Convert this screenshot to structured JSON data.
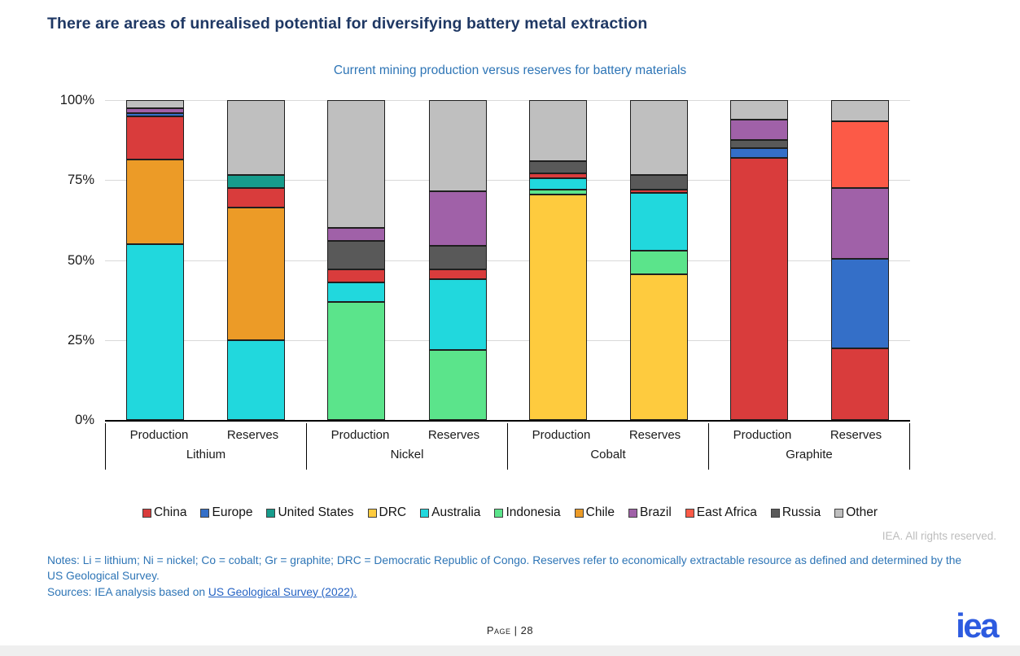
{
  "header": {
    "title": "There are areas of unrealised potential for diversifying battery metal extraction"
  },
  "chart_data": {
    "type": "bar",
    "stacked": true,
    "title": "Current mining production versus reserves for battery materials",
    "unit": "percent share",
    "ylim": [
      0,
      100
    ],
    "yticks": [
      0,
      25,
      50,
      75,
      100
    ],
    "ytick_labels": [
      "0%",
      "25%",
      "50%",
      "75%",
      "100%"
    ],
    "grid": true,
    "legend_position": "bottom",
    "legend": [
      "China",
      "Europe",
      "United States",
      "DRC",
      "Australia",
      "Indonesia",
      "Chile",
      "Brazil",
      "East Africa",
      "Russia",
      "Other"
    ],
    "series_colors": {
      "China": "#D93C3C",
      "Europe": "#346FC8",
      "United States": "#169C8C",
      "DRC": "#FECB3E",
      "Australia": "#21D8DD",
      "Indonesia": "#5BE48B",
      "Chile": "#EC9B27",
      "Brazil": "#A061A8",
      "East Africa": "#FC5A47",
      "Russia": "#595959",
      "Other": "#BFBFBF"
    },
    "groups": [
      {
        "label": "Lithium",
        "bars": [
          {
            "label": "Production",
            "segments": [
              {
                "name": "Australia",
                "value": 55
              },
              {
                "name": "Chile",
                "value": 26.5
              },
              {
                "name": "China",
                "value": 13.5
              },
              {
                "name": "Europe",
                "value": 1
              },
              {
                "name": "Brazil",
                "value": 1.5
              },
              {
                "name": "Other",
                "value": 2.5
              }
            ]
          },
          {
            "label": "Reserves",
            "segments": [
              {
                "name": "Australia",
                "value": 25
              },
              {
                "name": "Chile",
                "value": 41.5
              },
              {
                "name": "China",
                "value": 6
              },
              {
                "name": "United States",
                "value": 4
              },
              {
                "name": "Other",
                "value": 23.5
              }
            ]
          }
        ]
      },
      {
        "label": "Nickel",
        "bars": [
          {
            "label": "Production",
            "segments": [
              {
                "name": "Indonesia",
                "value": 37
              },
              {
                "name": "Australia",
                "value": 6
              },
              {
                "name": "China",
                "value": 4
              },
              {
                "name": "Russia",
                "value": 9
              },
              {
                "name": "Brazil",
                "value": 4
              },
              {
                "name": "Other",
                "value": 40
              }
            ]
          },
          {
            "label": "Reserves",
            "segments": [
              {
                "name": "Indonesia",
                "value": 22
              },
              {
                "name": "Australia",
                "value": 22
              },
              {
                "name": "China",
                "value": 3
              },
              {
                "name": "Russia",
                "value": 7.5
              },
              {
                "name": "Brazil",
                "value": 17
              },
              {
                "name": "Other",
                "value": 28.5
              }
            ]
          }
        ]
      },
      {
        "label": "Cobalt",
        "bars": [
          {
            "label": "Production",
            "segments": [
              {
                "name": "DRC",
                "value": 70.5
              },
              {
                "name": "Indonesia",
                "value": 1.5
              },
              {
                "name": "Australia",
                "value": 3.5
              },
              {
                "name": "China",
                "value": 1.5
              },
              {
                "name": "Russia",
                "value": 4
              },
              {
                "name": "Other",
                "value": 19
              }
            ]
          },
          {
            "label": "Reserves",
            "segments": [
              {
                "name": "DRC",
                "value": 45.5
              },
              {
                "name": "Indonesia",
                "value": 7.5
              },
              {
                "name": "Australia",
                "value": 18
              },
              {
                "name": "China",
                "value": 1
              },
              {
                "name": "Russia",
                "value": 4.5
              },
              {
                "name": "Other",
                "value": 23.5
              }
            ]
          }
        ]
      },
      {
        "label": "Graphite",
        "bars": [
          {
            "label": "Production",
            "segments": [
              {
                "name": "China",
                "value": 82
              },
              {
                "name": "Europe",
                "value": 3
              },
              {
                "name": "Russia",
                "value": 2.5
              },
              {
                "name": "Brazil",
                "value": 6.5
              },
              {
                "name": "Other",
                "value": 6
              }
            ]
          },
          {
            "label": "Reserves",
            "segments": [
              {
                "name": "China",
                "value": 22.5
              },
              {
                "name": "Europe",
                "value": 28
              },
              {
                "name": "Brazil",
                "value": 22
              },
              {
                "name": "East Africa",
                "value": 21
              },
              {
                "name": "Other",
                "value": 6.5
              }
            ]
          }
        ]
      }
    ]
  },
  "footer": {
    "rights": "IEA. All rights reserved.",
    "notes": "Notes: Li = lithium; Ni = nickel; Co = cobalt; Gr = graphite; DRC = Democratic Republic of Congo. Reserves refer to economically extractable resource as defined and determined by the US Geological Survey.",
    "sources_prefix": "Sources: IEA analysis based on ",
    "sources_link": "US Geological Survey (2022).",
    "page_label": "Page | 28",
    "logo": "iea"
  }
}
